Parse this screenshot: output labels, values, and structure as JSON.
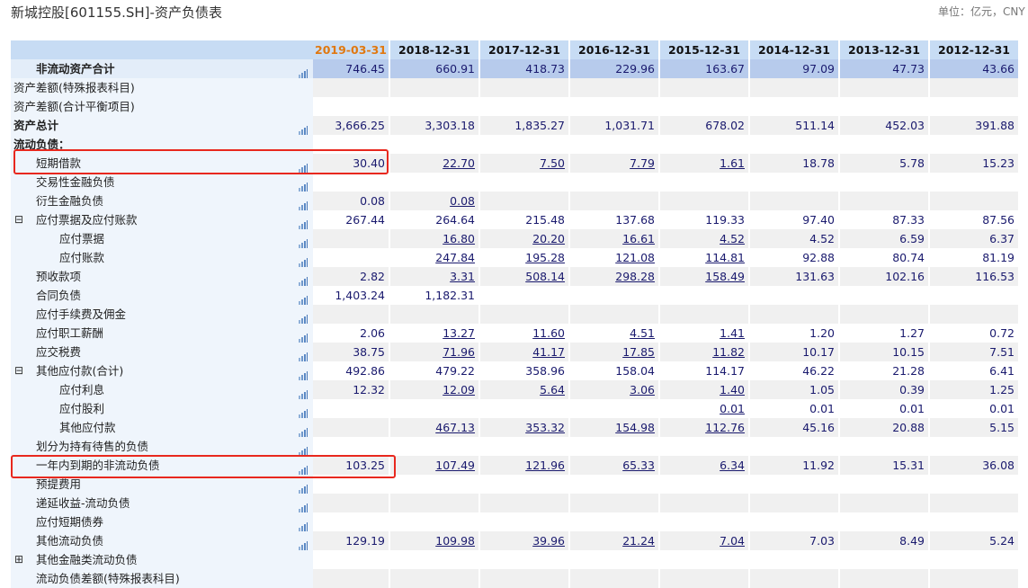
{
  "title": "新城控股[601155.SH]-资产负债表",
  "unit": "单位：亿元，CNY",
  "columns": [
    "2019-03-31",
    "2018-12-31",
    "2017-12-31",
    "2016-12-31",
    "2015-12-31",
    "2014-12-31",
    "2013-12-31",
    "2012-12-31"
  ],
  "icons": {
    "chart": "bar-chart-icon",
    "expand": "plus-box-icon",
    "collapse": "minus-box-icon"
  },
  "rows": [
    {
      "label": "非流动资产合计",
      "bold": true,
      "indent": 1,
      "icon": true,
      "hl": true,
      "values": [
        "746.45",
        "660.91",
        "418.73",
        "229.96",
        "163.67",
        "97.09",
        "47.73",
        "43.66"
      ],
      "links": []
    },
    {
      "label": "资产差额(特殊报表科目)",
      "indent": 0,
      "icon": false,
      "values": [],
      "links": []
    },
    {
      "label": "资产差额(合计平衡项目)",
      "indent": 0,
      "icon": false,
      "values": [],
      "links": []
    },
    {
      "label": "资产总计",
      "bold": true,
      "indent": 0,
      "icon": true,
      "values": [
        "3,666.25",
        "3,303.18",
        "1,835.27",
        "1,031.71",
        "678.02",
        "511.14",
        "452.03",
        "391.88"
      ],
      "links": []
    },
    {
      "label": "流动负债：",
      "bold": true,
      "indent": 0,
      "icon": false,
      "values": [],
      "links": []
    },
    {
      "label": "短期借款",
      "indent": 1,
      "icon": true,
      "values": [
        "30.40",
        "22.70",
        "7.50",
        "7.79",
        "1.61",
        "18.78",
        "5.78",
        "15.23"
      ],
      "links": [
        1,
        2,
        3,
        4
      ]
    },
    {
      "label": "交易性金融负债",
      "indent": 1,
      "icon": true,
      "values": [],
      "links": []
    },
    {
      "label": "衍生金融负债",
      "indent": 1,
      "icon": true,
      "values": [
        "0.08",
        "0.08"
      ],
      "links": [
        1
      ]
    },
    {
      "label": "应付票据及应付账款",
      "indent": 1,
      "toggle": "⊟",
      "icon": true,
      "values": [
        "267.44",
        "264.64",
        "215.48",
        "137.68",
        "119.33",
        "97.40",
        "87.33",
        "87.56"
      ],
      "links": []
    },
    {
      "label": "应付票据",
      "indent": 2,
      "icon": true,
      "values": [
        "",
        "16.80",
        "20.20",
        "16.61",
        "4.52",
        "4.52",
        "6.59",
        "6.37"
      ],
      "links": [
        1,
        2,
        3,
        4
      ]
    },
    {
      "label": "应付账款",
      "indent": 2,
      "icon": true,
      "values": [
        "",
        "247.84",
        "195.28",
        "121.08",
        "114.81",
        "92.88",
        "80.74",
        "81.19"
      ],
      "links": [
        1,
        2,
        3,
        4
      ]
    },
    {
      "label": "预收款项",
      "indent": 1,
      "icon": true,
      "values": [
        "2.82",
        "3.31",
        "508.14",
        "298.28",
        "158.49",
        "131.63",
        "102.16",
        "116.53"
      ],
      "links": [
        1,
        2,
        3,
        4
      ]
    },
    {
      "label": "合同负债",
      "indent": 1,
      "icon": true,
      "values": [
        "1,403.24",
        "1,182.31"
      ],
      "links": []
    },
    {
      "label": "应付手续费及佣金",
      "indent": 1,
      "icon": true,
      "values": [],
      "links": []
    },
    {
      "label": "应付职工薪酬",
      "indent": 1,
      "icon": true,
      "values": [
        "2.06",
        "13.27",
        "11.60",
        "4.51",
        "1.41",
        "1.20",
        "1.27",
        "0.72"
      ],
      "links": [
        1,
        2,
        3,
        4
      ]
    },
    {
      "label": "应交税费",
      "indent": 1,
      "icon": true,
      "values": [
        "38.75",
        "71.96",
        "41.17",
        "17.85",
        "11.82",
        "10.17",
        "10.15",
        "7.51"
      ],
      "links": [
        1,
        2,
        3,
        4
      ]
    },
    {
      "label": "其他应付款(合计)",
      "indent": 1,
      "toggle": "⊟",
      "icon": true,
      "values": [
        "492.86",
        "479.22",
        "358.96",
        "158.04",
        "114.17",
        "46.22",
        "21.28",
        "6.41"
      ],
      "links": []
    },
    {
      "label": "应付利息",
      "indent": 2,
      "icon": true,
      "values": [
        "12.32",
        "12.09",
        "5.64",
        "3.06",
        "1.40",
        "1.05",
        "0.39",
        "1.25"
      ],
      "links": [
        1,
        2,
        3,
        4
      ]
    },
    {
      "label": "应付股利",
      "indent": 2,
      "icon": true,
      "values": [
        "",
        "",
        "",
        "",
        "0.01",
        "0.01",
        "0.01",
        "0.01"
      ],
      "links": [
        4
      ]
    },
    {
      "label": "其他应付款",
      "indent": 2,
      "icon": true,
      "values": [
        "",
        "467.13",
        "353.32",
        "154.98",
        "112.76",
        "45.16",
        "20.88",
        "5.15"
      ],
      "links": [
        1,
        2,
        3,
        4
      ]
    },
    {
      "label": "划分为持有待售的负债",
      "indent": 1,
      "icon": true,
      "values": [],
      "links": []
    },
    {
      "label": "一年内到期的非流动负债",
      "indent": 1,
      "icon": true,
      "values": [
        "103.25",
        "107.49",
        "121.96",
        "65.33",
        "6.34",
        "11.92",
        "15.31",
        "36.08"
      ],
      "links": [
        1,
        2,
        3,
        4
      ]
    },
    {
      "label": "预提费用",
      "indent": 1,
      "icon": true,
      "values": [],
      "links": []
    },
    {
      "label": "递延收益-流动负债",
      "indent": 1,
      "icon": true,
      "values": [],
      "links": []
    },
    {
      "label": "应付短期债券",
      "indent": 1,
      "icon": true,
      "values": [],
      "links": []
    },
    {
      "label": "其他流动负债",
      "indent": 1,
      "icon": true,
      "values": [
        "129.19",
        "109.98",
        "39.96",
        "21.24",
        "7.04",
        "7.03",
        "8.49",
        "5.24"
      ],
      "links": [
        1,
        2,
        3,
        4
      ]
    },
    {
      "label": "其他金融类流动负债",
      "indent": 1,
      "toggle": "⊞",
      "icon": false,
      "values": [],
      "links": []
    },
    {
      "label": "流动负债差额(特殊报表科目)",
      "indent": 1,
      "icon": false,
      "values": [],
      "links": []
    }
  ]
}
